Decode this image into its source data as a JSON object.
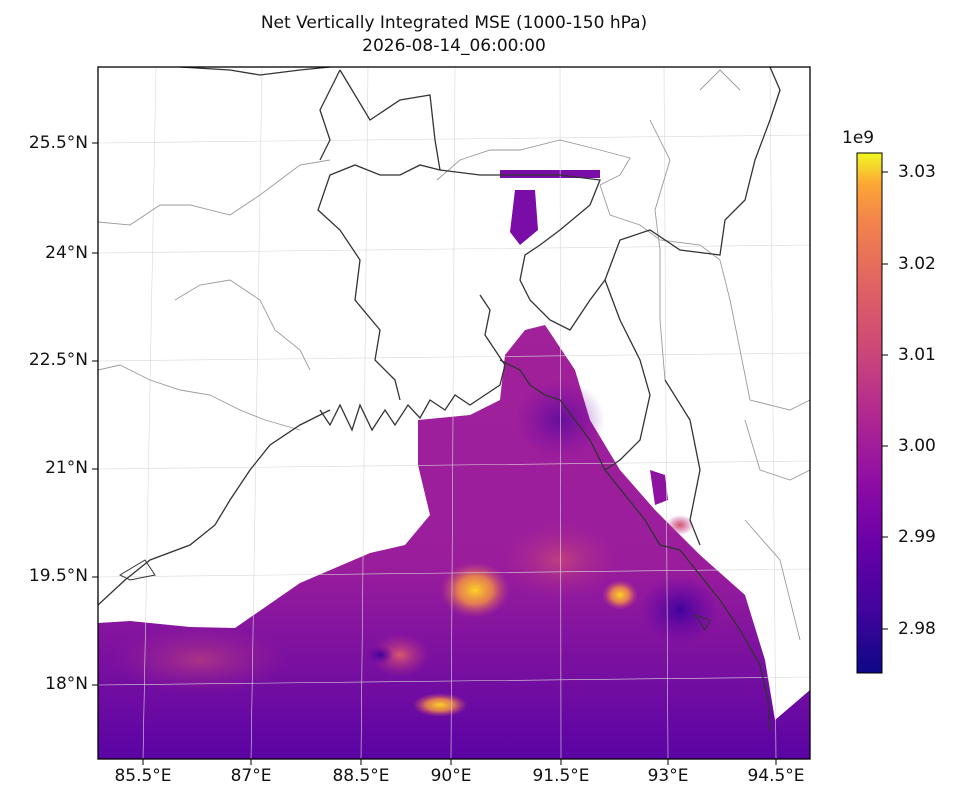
{
  "title": {
    "line1": "Net Vertically Integrated MSE (1000-150 hPa)",
    "line2": "2026-08-14_06:00:00"
  },
  "lat_ticks": [
    "25.5°N",
    "24°N",
    "22.5°N",
    "21°N",
    "19.5°N",
    "18°N"
  ],
  "lon_ticks": [
    "85.5°E",
    "87°E",
    "88.5°E",
    "90°E",
    "91.5°E",
    "93°E",
    "94.5°E"
  ],
  "colorbar": {
    "exponent_label": "1e9",
    "ticks": [
      "3.03",
      "3.02",
      "3.01",
      "3.00",
      "2.99",
      "2.98"
    ],
    "colormap": "plasma",
    "range": [
      2.975,
      3.033
    ]
  },
  "map": {
    "extent_lon": [
      84.95,
      95.1
    ],
    "extent_lat": [
      16.95,
      26.55
    ],
    "gridlines": true,
    "land_color": "#ffffff",
    "coastline_color": "#333333",
    "border_color": "#999999"
  }
}
